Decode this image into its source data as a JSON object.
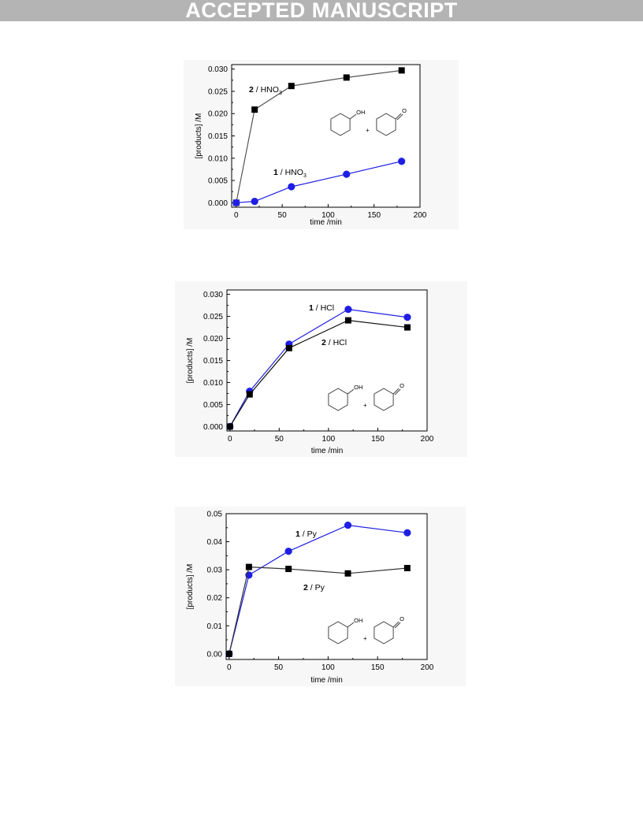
{
  "banner": {
    "text": "ACCEPTED MANUSCRIPT"
  },
  "chart_data": [
    {
      "type": "line",
      "xlabel": "time /min",
      "ylabel": "[products] /M",
      "xlim": [
        -5,
        200
      ],
      "ylim": [
        -0.001,
        0.031
      ],
      "xticks": [
        "0",
        "50",
        "100",
        "150",
        "200"
      ],
      "yticks": [
        "0.000",
        "0.005",
        "0.010",
        "0.015",
        "0.020",
        "0.025",
        "0.030"
      ],
      "series": [
        {
          "name": "2 / HNO3",
          "label_num": "2",
          "label_text": "/ HNO",
          "label_sub": "3",
          "color": "#555555",
          "marker": "square",
          "x": [
            0,
            20,
            60,
            120,
            180
          ],
          "y": [
            0.0,
            0.0209,
            0.0262,
            0.0281,
            0.0297
          ]
        },
        {
          "name": "1 / HNO3",
          "label_num": "1",
          "label_text": "/ HNO",
          "label_sub": "3",
          "color": "#1f1fe0",
          "marker": "circle",
          "x": [
            0,
            20,
            60,
            120,
            180
          ],
          "y": [
            0.0,
            0.0003,
            0.0036,
            0.0064,
            0.0093
          ]
        }
      ],
      "structure_labels": {
        "oh": "OH",
        "plus": "+",
        "o": "O"
      }
    },
    {
      "type": "line",
      "xlabel": "time /min",
      "ylabel": "[products] /M",
      "xlim": [
        -3,
        200
      ],
      "ylim": [
        -0.001,
        0.031
      ],
      "xticks": [
        "0",
        "50",
        "100",
        "150",
        "200"
      ],
      "yticks": [
        "0.000",
        "0.005",
        "0.010",
        "0.015",
        "0.020",
        "0.025",
        "0.030"
      ],
      "series": [
        {
          "name": "1 / HCl",
          "label_num": "1",
          "label_text": "/ HCl",
          "label_sub": "",
          "color": "#1f1fe0",
          "marker": "circle",
          "x": [
            0,
            20,
            60,
            120,
            180
          ],
          "y": [
            0.0,
            0.008,
            0.0187,
            0.0266,
            0.0248
          ]
        },
        {
          "name": "2 / HCl",
          "label_num": "2",
          "label_text": "/ HCl",
          "label_sub": "",
          "color": "#111111",
          "marker": "square",
          "x": [
            0,
            20,
            60,
            120,
            180
          ],
          "y": [
            0.0,
            0.0073,
            0.0178,
            0.0241,
            0.0225
          ]
        }
      ],
      "structure_labels": {
        "oh": "OH",
        "plus": "+",
        "o": "O"
      }
    },
    {
      "type": "line",
      "xlabel": "time /min",
      "ylabel": "[products] /M",
      "xlim": [
        -3,
        200
      ],
      "ylim": [
        -0.002,
        0.05
      ],
      "xticks": [
        "0",
        "50",
        "100",
        "150",
        "200"
      ],
      "yticks": [
        "0.00",
        "0.01",
        "0.02",
        "0.03",
        "0.04",
        "0.05"
      ],
      "series": [
        {
          "name": "1 / Py",
          "label_num": "1",
          "label_text": "/ Py",
          "label_sub": "",
          "color": "#1f1fe0",
          "marker": "circle",
          "x": [
            0,
            20,
            60,
            120,
            180
          ],
          "y": [
            0.0,
            0.0281,
            0.0366,
            0.0459,
            0.0432
          ]
        },
        {
          "name": "2 / Py",
          "label_num": "2",
          "label_text": "/ Py",
          "label_sub": "",
          "color": "#333333",
          "marker": "square",
          "x": [
            0,
            20,
            60,
            120,
            180
          ],
          "y": [
            0.0,
            0.031,
            0.0303,
            0.0287,
            0.0306
          ]
        }
      ],
      "structure_labels": {
        "oh": "OH",
        "plus": "+",
        "o": "O"
      }
    }
  ]
}
